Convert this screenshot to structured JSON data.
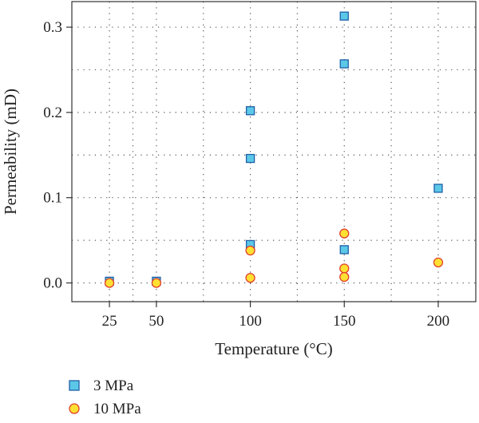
{
  "chart_data": {
    "type": "scatter",
    "xlabel": "Temperature (°C)",
    "ylabel": "Permeability (mD)",
    "xlim": [
      5,
      220
    ],
    "ylim": [
      -0.022,
      0.33
    ],
    "xticks": [
      25,
      50,
      100,
      150,
      200
    ],
    "xtick_labels": [
      "25",
      "50",
      "100",
      "150",
      "200"
    ],
    "yticks": [
      0.0,
      0.1,
      0.2,
      0.3
    ],
    "ytick_labels": [
      "0.0",
      "0.1",
      "0.2",
      "0.3"
    ],
    "grid_x": [
      25,
      37.5,
      50,
      75,
      100,
      125,
      150,
      175,
      200
    ],
    "grid_y": [
      0,
      0.05,
      0.1,
      0.15,
      0.2,
      0.25,
      0.3
    ],
    "grid": true,
    "legend_position": "bottom-left",
    "series": [
      {
        "name": "3 MPa",
        "marker": "square",
        "fill": "#5bc8e8",
        "stroke": "#1f5fa8",
        "points": [
          {
            "x": 25,
            "y": 0.002
          },
          {
            "x": 50,
            "y": 0.002
          },
          {
            "x": 100,
            "y": 0.202
          },
          {
            "x": 100,
            "y": 0.146
          },
          {
            "x": 100,
            "y": 0.045
          },
          {
            "x": 150,
            "y": 0.313
          },
          {
            "x": 150,
            "y": 0.257
          },
          {
            "x": 150,
            "y": 0.039
          },
          {
            "x": 200,
            "y": 0.111
          }
        ]
      },
      {
        "name": "10 MPa",
        "marker": "circle",
        "fill": "#ffe033",
        "stroke": "#e0402a",
        "points": [
          {
            "x": 25,
            "y": 0.0
          },
          {
            "x": 50,
            "y": 0.0
          },
          {
            "x": 100,
            "y": 0.038
          },
          {
            "x": 100,
            "y": 0.006
          },
          {
            "x": 150,
            "y": 0.058
          },
          {
            "x": 150,
            "y": 0.017
          },
          {
            "x": 150,
            "y": 0.007
          },
          {
            "x": 200,
            "y": 0.024
          }
        ]
      }
    ]
  }
}
